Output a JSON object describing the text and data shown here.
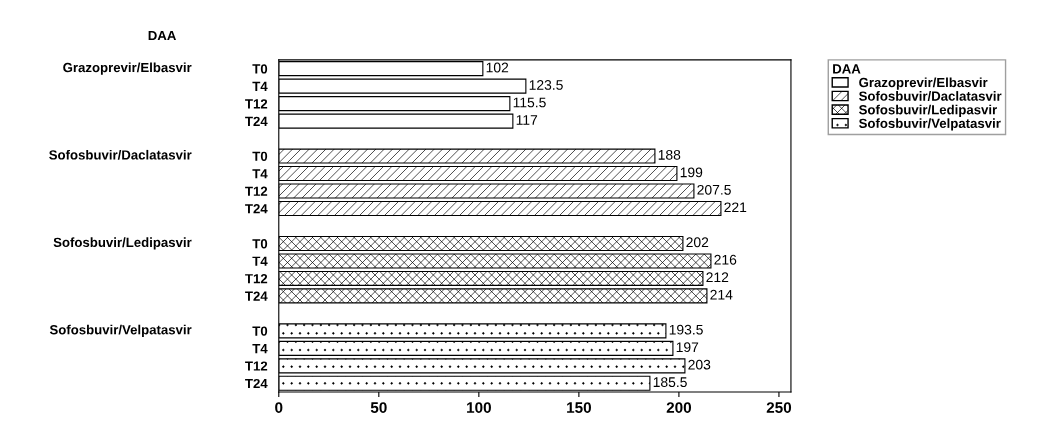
{
  "chart_data": {
    "type": "bar",
    "orientation": "horizontal",
    "annotations": [
      "DAA"
    ],
    "legend_title": "DAA",
    "legend": "top right",
    "categories": [
      "T0",
      "T4",
      "T12",
      "T24",
      null,
      "T0",
      "T4",
      "T12",
      "T24",
      null,
      "T0",
      "T4",
      "T12",
      "T24",
      null,
      "T0",
      "T4",
      "T12",
      "T24"
    ],
    "series": [
      {
        "name": "Grazoprevir/Elbasvir",
        "color": "#ffffff",
        "values": [
          102,
          123.5,
          115.5,
          117,
          null,
          null,
          null,
          null,
          null,
          null,
          null,
          null,
          null,
          null,
          null,
          null,
          null,
          null,
          null
        ]
      },
      {
        "name": "Sofosbuvir/Daclatasvir",
        "color": "#000000",
        "values": [
          null,
          null,
          null,
          null,
          null,
          188,
          199,
          207.5,
          221,
          null,
          null,
          null,
          null,
          null,
          null,
          null,
          null,
          null,
          null
        ]
      },
      {
        "name": "Sofosbuvir/Ledipasvir",
        "color": "#000000",
        "values": [
          null,
          null,
          null,
          null,
          null,
          null,
          null,
          null,
          null,
          null,
          202,
          216,
          212,
          214,
          null,
          null,
          null,
          null,
          null
        ]
      },
      {
        "name": "Sofosbuvir/Velpatasvir",
        "color": "#000000",
        "values": [
          null,
          null,
          null,
          null,
          null,
          null,
          null,
          null,
          null,
          null,
          null,
          null,
          null,
          null,
          null,
          193.5,
          197,
          203,
          185.5
        ]
      }
    ],
    "data_labels": true,
    "xlim": [
      0,
      256
    ],
    "xticks": [
      0,
      50,
      100,
      150,
      200,
      250
    ],
    "grid": false
  }
}
